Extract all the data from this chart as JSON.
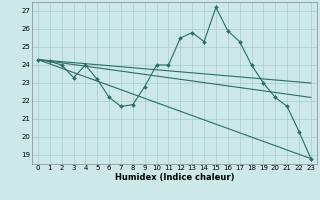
{
  "xlabel": "Humidex (Indice chaleur)",
  "background_color": "#cce8e8",
  "grid_color": "#aacccc",
  "line_color": "#2a6e64",
  "xlim": [
    -0.5,
    23.5
  ],
  "ylim": [
    18.5,
    27.5
  ],
  "yticks": [
    19,
    20,
    21,
    22,
    23,
    24,
    25,
    26,
    27
  ],
  "xticks": [
    0,
    1,
    2,
    3,
    4,
    5,
    6,
    7,
    8,
    9,
    10,
    11,
    12,
    13,
    14,
    15,
    16,
    17,
    18,
    19,
    20,
    21,
    22,
    23
  ],
  "line1_x": [
    0,
    1,
    2,
    3,
    4,
    5,
    6,
    7,
    8,
    9,
    10,
    11,
    12,
    13,
    14,
    15,
    16,
    17,
    18,
    19,
    20,
    21,
    22,
    23
  ],
  "line1_y": [
    24.3,
    24.2,
    24.0,
    23.3,
    24.0,
    23.2,
    22.2,
    21.7,
    21.8,
    22.8,
    24.0,
    24.0,
    25.5,
    25.8,
    25.3,
    27.2,
    25.9,
    25.3,
    24.0,
    23.0,
    22.2,
    21.7,
    20.3,
    18.8
  ],
  "line2_x": [
    0,
    23
  ],
  "line2_y": [
    24.3,
    23.0
  ],
  "line3_x": [
    0,
    23
  ],
  "line3_y": [
    24.3,
    22.2
  ],
  "line4_x": [
    0,
    23
  ],
  "line4_y": [
    24.3,
    18.8
  ]
}
